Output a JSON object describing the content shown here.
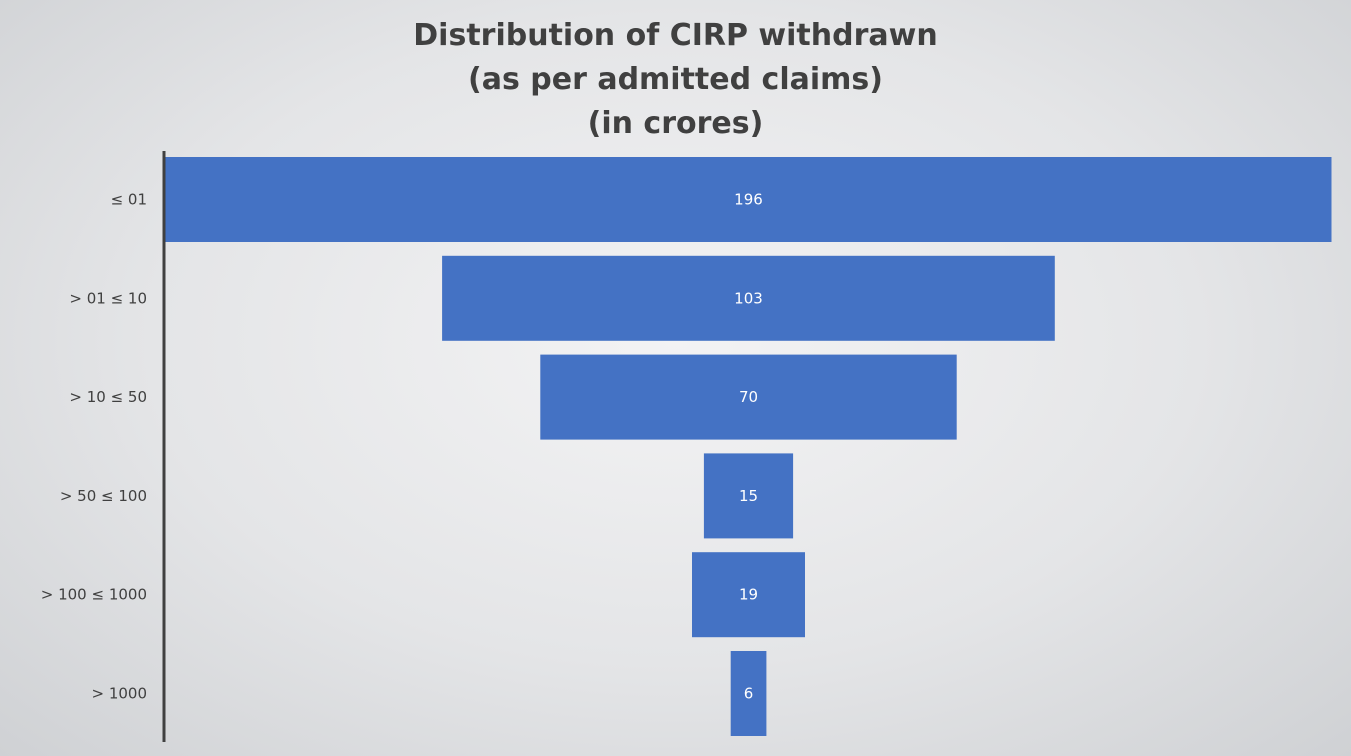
{
  "chart_data": {
    "type": "bar",
    "orientation": "horizontal-funnel",
    "title": [
      "Distribution of CIRP withdrawn",
      "(as per admitted claims)",
      "(in crores)"
    ],
    "categories": [
      "≤ 01",
      "> 01 ≤ 10",
      "> 10 ≤ 50",
      "> 50 ≤ 100",
      "> 100 ≤ 1000",
      "> 1000"
    ],
    "values": [
      196,
      103,
      70,
      15,
      19,
      6
    ],
    "data_labels": [
      "196",
      "103",
      "70",
      "15",
      "19",
      "6"
    ],
    "bar_color": "#4472c4",
    "label_color": "#ffffff",
    "text_color": "#404040",
    "grid": false,
    "legend": "none"
  }
}
